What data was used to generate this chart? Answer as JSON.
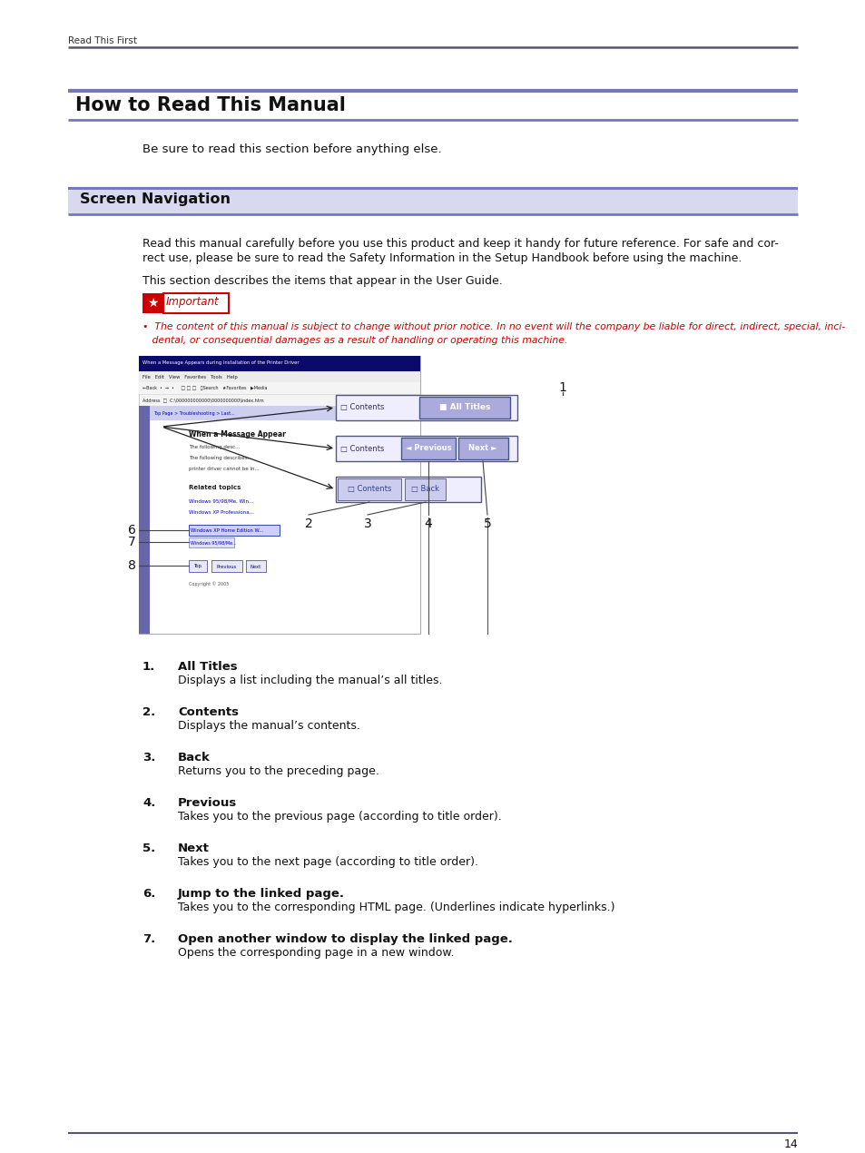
{
  "bg_color": "#ffffff",
  "header_text": "Read This First",
  "accent_color": "#7777bb",
  "title": "How to Read This Manual",
  "section_title": "Screen Navigation",
  "subtitle_text": "Be sure to read this section before anything else.",
  "body_line1": "Read this manual carefully before you use this product and keep it handy for future reference. For safe and cor-",
  "body_line2": "rect use, please be sure to read the Safety Information in the Setup Handbook before using the machine.",
  "body_line3": "This section describes the items that appear in the User Guide.",
  "important_label": "Important",
  "imp_line1": "•  The content of this manual is subject to change without prior notice. In no event will the company be liable for direct, indirect, special, inci-",
  "imp_line2": "   dental, or consequential damages as a result of handling or operating this machine.",
  "list_items": [
    {
      "num": "1.",
      "bold": "All Titles",
      "text": "Displays a list including the manual’s all titles."
    },
    {
      "num": "2.",
      "bold": "Contents",
      "text": "Displays the manual’s contents."
    },
    {
      "num": "3.",
      "bold": "Back",
      "text": "Returns you to the preceding page."
    },
    {
      "num": "4.",
      "bold": "Previous",
      "text": "Takes you to the previous page (according to title order)."
    },
    {
      "num": "5.",
      "bold": "Next",
      "text": "Takes you to the next page (according to title order)."
    },
    {
      "num": "6.",
      "bold": "Jump to the linked page.",
      "text": "Takes you to the corresponding HTML page. (Underlines indicate hyperlinks.)"
    },
    {
      "num": "7.",
      "bold": "Open another window to display the linked page.",
      "text": "Opens the corresponding page in a new window."
    }
  ],
  "page_number": "14",
  "red": "#cc0000",
  "dark": "#111111",
  "mid": "#555555",
  "light_accent": "#d8d8ee"
}
